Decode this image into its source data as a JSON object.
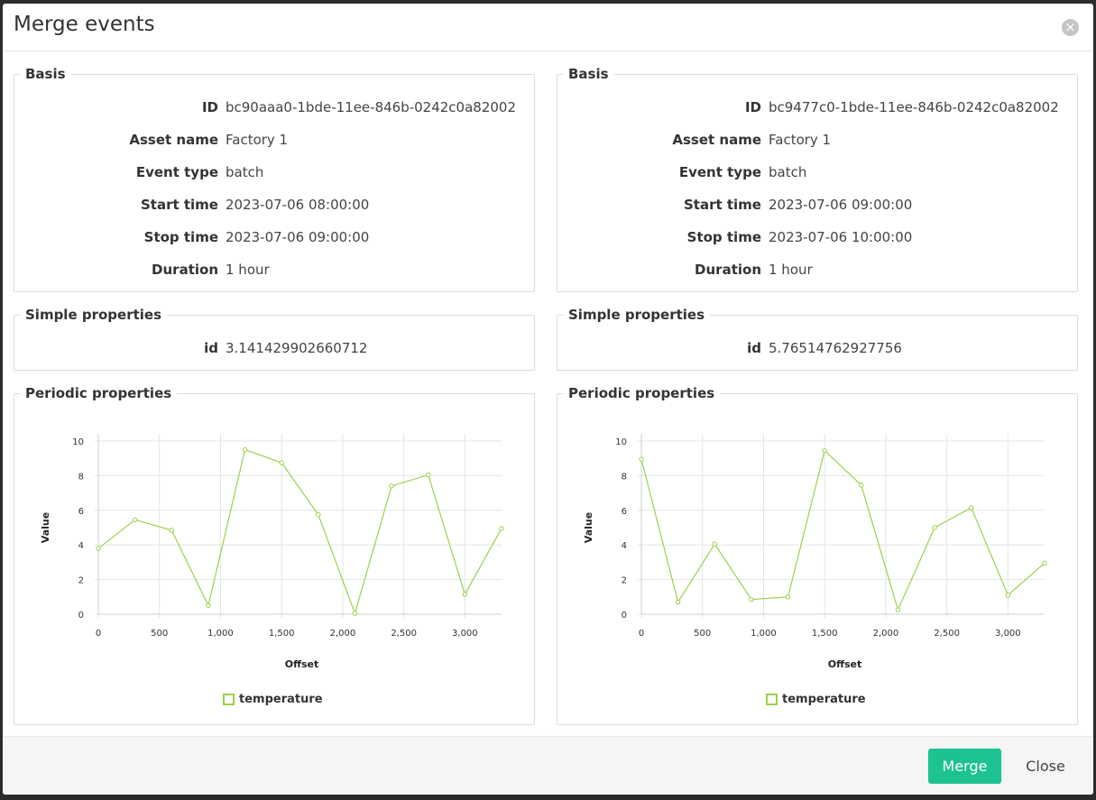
{
  "dialog": {
    "title": "Merge events",
    "close_icon_glyph": "×",
    "merge_label": "Merge",
    "close_label": "Close"
  },
  "events": [
    {
      "basis_legend": "Basis",
      "basis": [
        {
          "label": "ID",
          "value": "bc90aaa0-1bde-11ee-846b-0242c0a82002"
        },
        {
          "label": "Asset name",
          "value": "Factory 1"
        },
        {
          "label": "Event type",
          "value": "batch"
        },
        {
          "label": "Start time",
          "value": "2023-07-06 08:00:00"
        },
        {
          "label": "Stop time",
          "value": "2023-07-06 09:00:00"
        },
        {
          "label": "Duration",
          "value": "1 hour"
        }
      ],
      "simple_legend": "Simple properties",
      "simple": [
        {
          "label": "id",
          "value": "3.141429902660712"
        }
      ],
      "periodic_legend": "Periodic properties"
    },
    {
      "basis_legend": "Basis",
      "basis": [
        {
          "label": "ID",
          "value": "bc9477c0-1bde-11ee-846b-0242c0a82002"
        },
        {
          "label": "Asset name",
          "value": "Factory 1"
        },
        {
          "label": "Event type",
          "value": "batch"
        },
        {
          "label": "Start time",
          "value": "2023-07-06 09:00:00"
        },
        {
          "label": "Stop time",
          "value": "2023-07-06 10:00:00"
        },
        {
          "label": "Duration",
          "value": "1 hour"
        }
      ],
      "simple_legend": "Simple properties",
      "simple": [
        {
          "label": "id",
          "value": "5.76514762927756"
        }
      ],
      "periodic_legend": "Periodic properties"
    }
  ],
  "chart_data": [
    {
      "type": "line",
      "xlabel": "Offset",
      "ylabel": "Value",
      "xlim": [
        0,
        3300
      ],
      "ylim": [
        0,
        10
      ],
      "xticks": [
        0,
        500,
        1000,
        1500,
        2000,
        2500,
        3000
      ],
      "xtick_labels": [
        "0",
        "500",
        "1,000",
        "1,500",
        "2,000",
        "2,500",
        "3,000"
      ],
      "yticks": [
        0,
        2,
        4,
        6,
        8,
        10
      ],
      "ytick_labels": [
        "0",
        "2",
        "4",
        "6",
        "8",
        "10"
      ],
      "grid": true,
      "legend_position": "bottom",
      "series": [
        {
          "name": "temperature",
          "color": "#9bd14b",
          "x": [
            0,
            300,
            600,
            900,
            1200,
            1500,
            1800,
            2100,
            2400,
            2700,
            3000,
            3300
          ],
          "y": [
            3.8,
            5.45,
            4.85,
            0.5,
            9.5,
            8.75,
            5.75,
            0.05,
            7.4,
            8.05,
            1.15,
            4.95
          ]
        }
      ]
    },
    {
      "type": "line",
      "xlabel": "Offset",
      "ylabel": "Value",
      "xlim": [
        0,
        3300
      ],
      "ylim": [
        0,
        10
      ],
      "xticks": [
        0,
        500,
        1000,
        1500,
        2000,
        2500,
        3000
      ],
      "xtick_labels": [
        "0",
        "500",
        "1,000",
        "1,500",
        "2,000",
        "2,500",
        "3,000"
      ],
      "yticks": [
        0,
        2,
        4,
        6,
        8,
        10
      ],
      "ytick_labels": [
        "0",
        "2",
        "4",
        "6",
        "8",
        "10"
      ],
      "grid": true,
      "legend_position": "bottom",
      "series": [
        {
          "name": "temperature",
          "color": "#9bd14b",
          "x": [
            0,
            300,
            600,
            900,
            1200,
            1500,
            1800,
            2100,
            2400,
            2700,
            3000,
            3300
          ],
          "y": [
            8.95,
            0.7,
            4.05,
            0.85,
            1.0,
            9.45,
            7.45,
            0.25,
            5.0,
            6.15,
            1.1,
            2.95
          ]
        }
      ]
    }
  ]
}
